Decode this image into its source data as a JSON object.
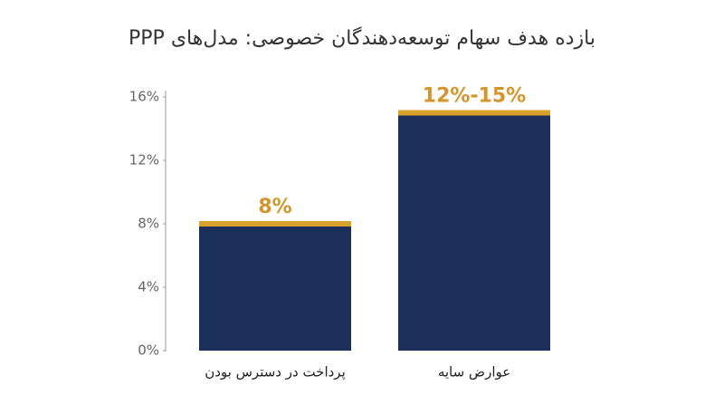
{
  "chart_data": {
    "type": "bar",
    "title": "بازده هدف سهام توسعه‌دهندگان خصوصی: مدل‌های PPP",
    "categories": [
      "پرداخت در دسترس بودن",
      "عوارض سایه"
    ],
    "values": [
      8,
      15
    ],
    "value_labels": [
      "8%",
      "12%-15%"
    ],
    "color": "#1b2f5a",
    "cap_color": "#d9a22b",
    "label_color": "#d4952a",
    "ylim": [
      0,
      16
    ],
    "yticks": [
      {
        "value": 0,
        "label": "0%"
      },
      {
        "value": 4,
        "label": "4%"
      },
      {
        "value": 8,
        "label": "8%"
      },
      {
        "value": 12,
        "label": "12%"
      },
      {
        "value": 16,
        "label": "16%"
      }
    ],
    "grid": false
  }
}
